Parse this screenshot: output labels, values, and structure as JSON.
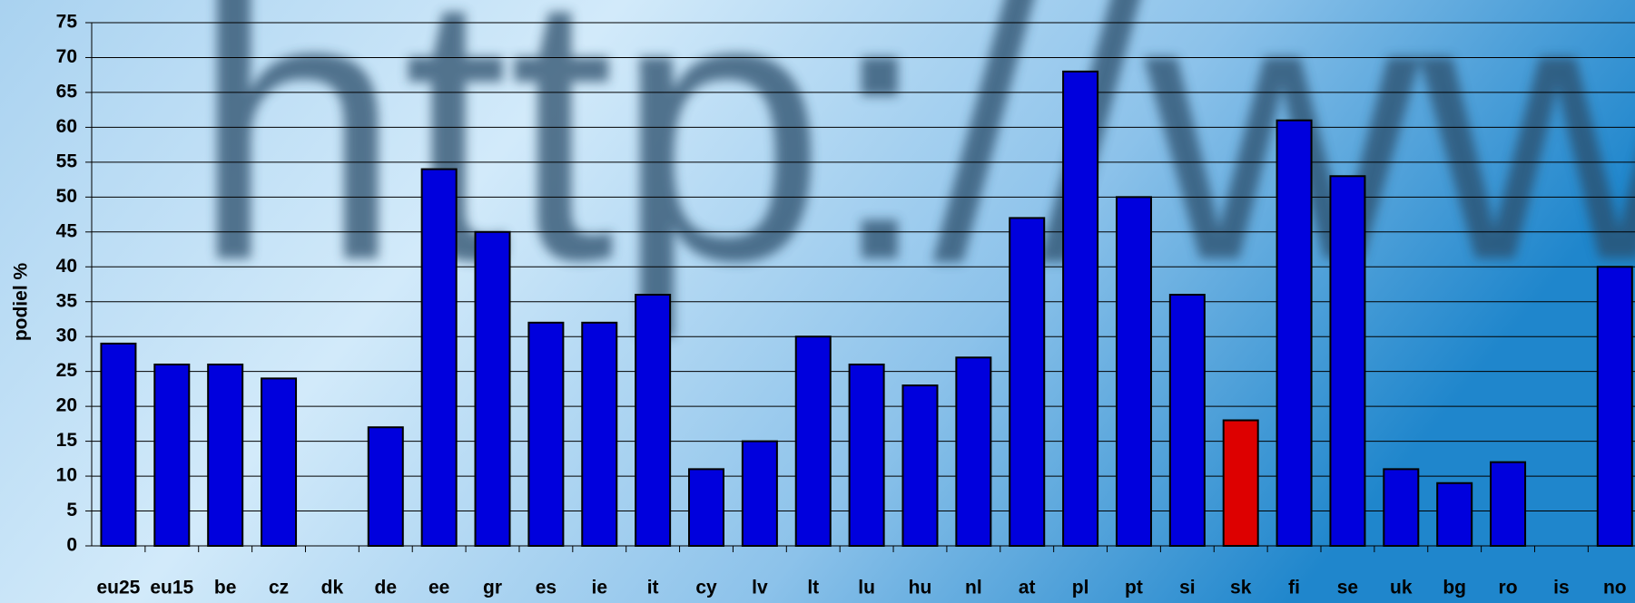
{
  "chart_data": {
    "type": "bar",
    "watermark": "http://ww",
    "y_label": "podiel %",
    "categories": [
      "eu25",
      "eu15",
      "be",
      "cz",
      "dk",
      "de",
      "ee",
      "gr",
      "es",
      "ie",
      "it",
      "cy",
      "lv",
      "lt",
      "lu",
      "hu",
      "nl",
      "at",
      "pl",
      "pt",
      "si",
      "sk",
      "fi",
      "se",
      "uk",
      "bg",
      "ro",
      "is",
      "no"
    ],
    "values": [
      29,
      26,
      26,
      24,
      null,
      17,
      54,
      45,
      32,
      32,
      36,
      11,
      15,
      30,
      26,
      23,
      27,
      47,
      68,
      50,
      36,
      18,
      61,
      53,
      11,
      9,
      12,
      null,
      40
    ],
    "colors": [
      "#0000dd",
      "#0000dd",
      "#0000dd",
      "#0000dd",
      "#0000dd",
      "#0000dd",
      "#0000dd",
      "#0000dd",
      "#0000dd",
      "#0000dd",
      "#0000dd",
      "#0000dd",
      "#0000dd",
      "#0000dd",
      "#0000dd",
      "#0000dd",
      "#0000dd",
      "#0000dd",
      "#0000dd",
      "#0000dd",
      "#0000dd",
      "#dd0000",
      "#0000dd",
      "#0000dd",
      "#0000dd",
      "#0000dd",
      "#0000dd",
      "#0000dd",
      "#0000dd"
    ],
    "ylim": [
      0,
      75
    ],
    "yticks": [
      0,
      5,
      10,
      15,
      20,
      25,
      30,
      35,
      40,
      45,
      50,
      55,
      60,
      65,
      70,
      75
    ],
    "grid": true
  }
}
